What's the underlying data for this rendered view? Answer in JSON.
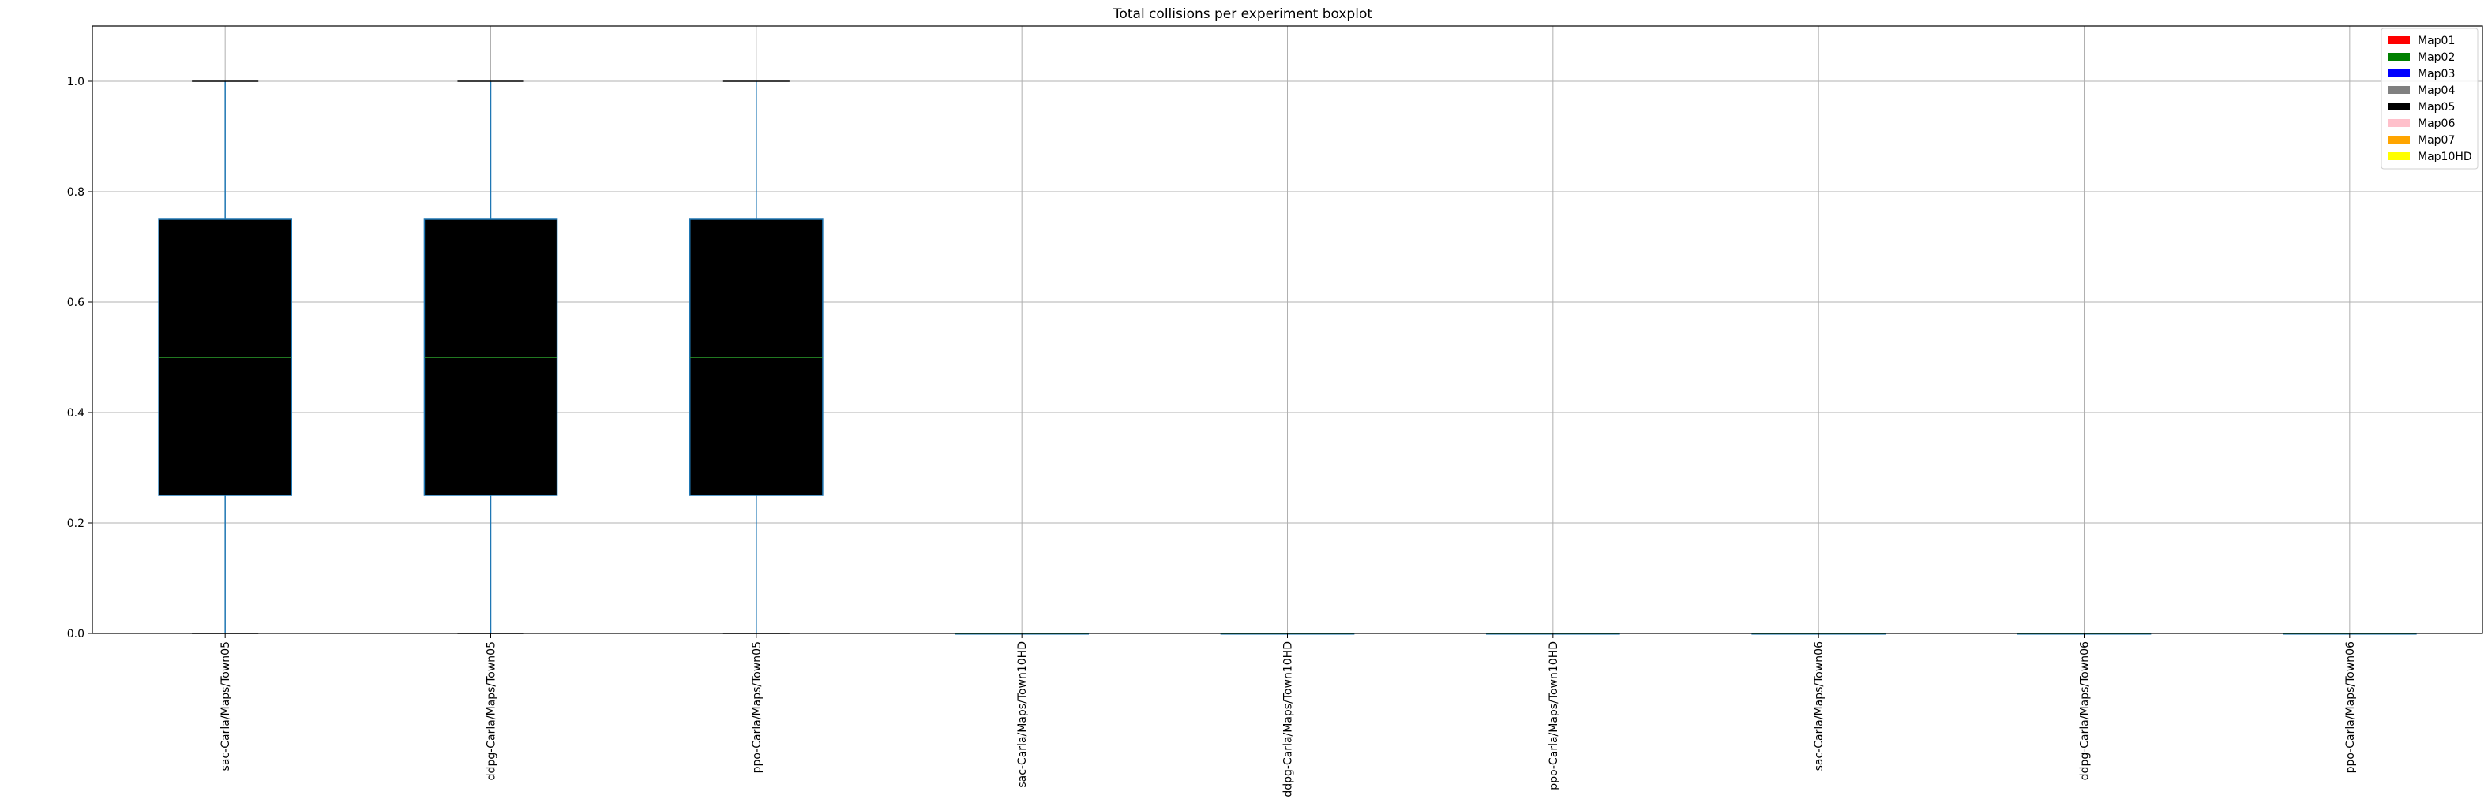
{
  "chart_data": {
    "type": "boxplot",
    "title": "Total collisions per experiment boxplot",
    "xlabel": "",
    "ylabel": "",
    "ylim": [
      0,
      1.1
    ],
    "yticks": [
      0.0,
      0.2,
      0.4,
      0.6,
      0.8,
      1.0
    ],
    "ytick_labels": [
      "0.0",
      "0.2",
      "0.4",
      "0.6",
      "0.8",
      "1.0"
    ],
    "grid": true,
    "legend_position": "top-right",
    "categories": [
      "sac-Carla/Maps/Town05",
      "ddpg-Carla/Maps/Town05",
      "ppo-Carla/Maps/Town05",
      "sac-Carla/Maps/Town10HD",
      "ddpg-Carla/Maps/Town10HD",
      "ppo-Carla/Maps/Town10HD",
      "sac-Carla/Maps/Town06",
      "ddpg-Carla/Maps/Town06",
      "ppo-Carla/Maps/Town06"
    ],
    "boxes": [
      {
        "whislo": 0,
        "q1": 0.25,
        "median": 0.5,
        "q3": 0.75,
        "whishi": 1.0,
        "fill": "#000000"
      },
      {
        "whislo": 0,
        "q1": 0.25,
        "median": 0.5,
        "q3": 0.75,
        "whishi": 1.0,
        "fill": "#000000"
      },
      {
        "whislo": 0,
        "q1": 0.25,
        "median": 0.5,
        "q3": 0.75,
        "whishi": 1.0,
        "fill": "#000000"
      },
      {
        "whislo": 0,
        "q1": 0,
        "median": 0,
        "q3": 0,
        "whishi": 0,
        "fill": "#ffc0cb"
      },
      {
        "whislo": 0,
        "q1": 0,
        "median": 0,
        "q3": 0,
        "whishi": 0,
        "fill": "#ffc0cb"
      },
      {
        "whislo": 0,
        "q1": 0,
        "median": 0,
        "q3": 0,
        "whishi": 0,
        "fill": "#ffc0cb"
      },
      {
        "whislo": 0,
        "q1": 0,
        "median": 0,
        "q3": 0,
        "whishi": 0,
        "fill": "#ffc0cb"
      },
      {
        "whislo": 0,
        "q1": 0,
        "median": 0,
        "q3": 0,
        "whishi": 0,
        "fill": "#ffc0cb"
      },
      {
        "whislo": 0,
        "q1": 0,
        "median": 0,
        "q3": 0,
        "whishi": 0,
        "fill": "#ffc0cb"
      }
    ],
    "box_edge_color": "#1f77b4",
    "median_color": "#2ca02c",
    "legend": [
      {
        "label": "Map01",
        "color": "#ff0000"
      },
      {
        "label": "Map02",
        "color": "#008000"
      },
      {
        "label": "Map03",
        "color": "#0000ff"
      },
      {
        "label": "Map04",
        "color": "#808080"
      },
      {
        "label": "Map05",
        "color": "#000000"
      },
      {
        "label": "Map06",
        "color": "#ffc0cb"
      },
      {
        "label": "Map07",
        "color": "#ffa500"
      },
      {
        "label": "Map10HD",
        "color": "#ffff00"
      }
    ]
  }
}
